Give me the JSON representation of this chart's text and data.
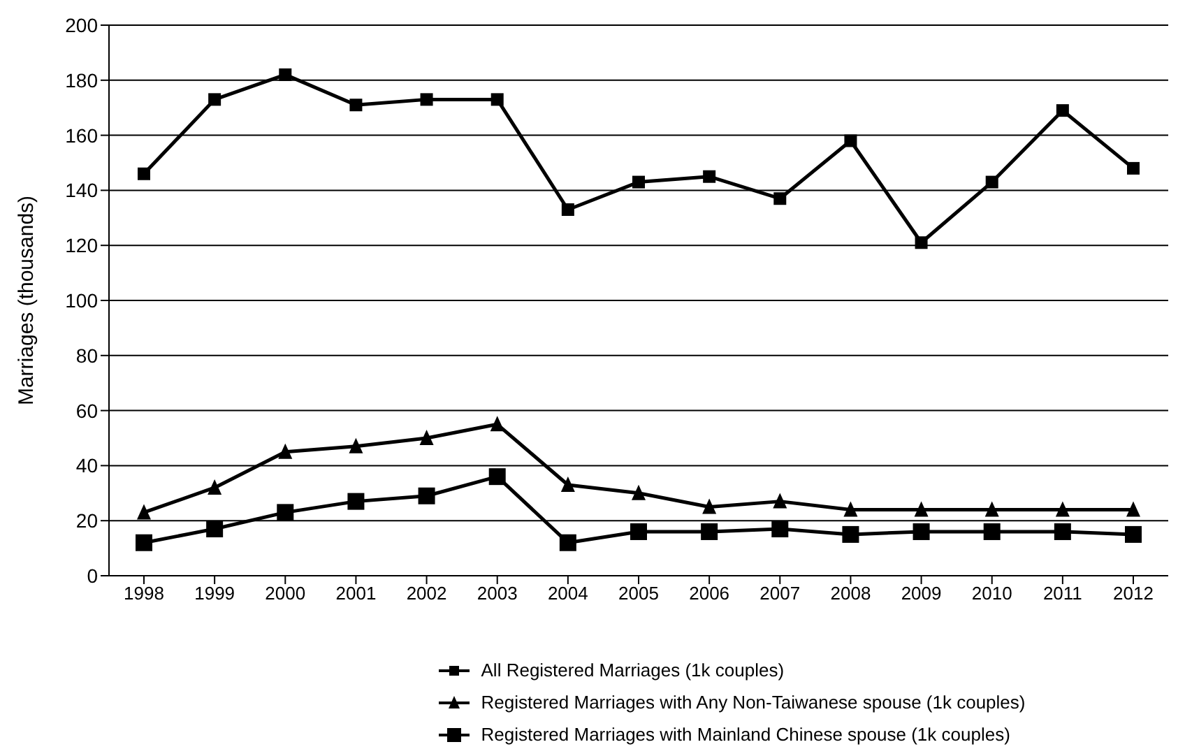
{
  "chart_data": {
    "type": "line",
    "ylabel": "Marriages (thousands)",
    "categories": [
      "1998",
      "1999",
      "2000",
      "2001",
      "2002",
      "2003",
      "2004",
      "2005",
      "2006",
      "2007",
      "2008",
      "2009",
      "2010",
      "2011",
      "2012"
    ],
    "series": [
      {
        "name": "All Registered Marriages (1k couples)",
        "color": "#000000",
        "marker": "square",
        "values": [
          146,
          173,
          182,
          171,
          173,
          173,
          133,
          143,
          145,
          137,
          158,
          121,
          143,
          169,
          148
        ]
      },
      {
        "name": "Registered Marriages with Any Non-Taiwanese spouse (1k couples)",
        "color": "#000000",
        "marker": "triangle",
        "values": [
          23,
          32,
          45,
          47,
          50,
          55,
          33,
          30,
          25,
          27,
          24,
          24,
          24,
          24,
          24
        ]
      },
      {
        "name": "Registered Marriages with Mainland Chinese spouse (1k couples)",
        "color": "#000000",
        "marker": "square",
        "values": [
          12,
          17,
          23,
          27,
          29,
          36,
          12,
          16,
          16,
          17,
          15,
          16,
          16,
          16,
          15
        ]
      }
    ],
    "ylim": [
      0,
      200
    ],
    "yticks": [
      0,
      20,
      40,
      60,
      80,
      100,
      120,
      140,
      160,
      180,
      200
    ],
    "grid": "y",
    "legend": "bottom",
    "line_style": "solid"
  }
}
